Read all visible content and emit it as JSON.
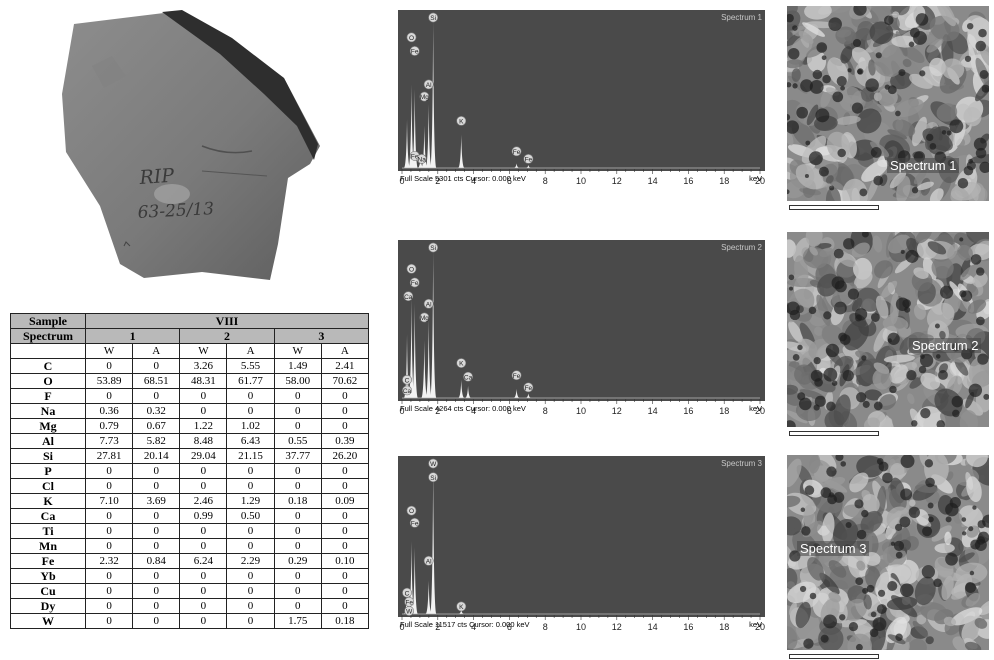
{
  "chart_data": [
    {
      "type": "table",
      "header": {
        "sample_label": "Sample",
        "sample_value": "VIII",
        "spectrum_label": "Spectrum",
        "spectra": [
          "1",
          "2",
          "3"
        ]
      },
      "sub_columns": [
        "W",
        "A",
        "W",
        "A",
        "W",
        "A"
      ],
      "rows": [
        {
          "element": "C",
          "values": [
            "0",
            "0",
            "3.26",
            "5.55",
            "1.49",
            "2.41"
          ]
        },
        {
          "element": "O",
          "values": [
            "53.89",
            "68.51",
            "48.31",
            "61.77",
            "58.00",
            "70.62"
          ]
        },
        {
          "element": "F",
          "values": [
            "0",
            "0",
            "0",
            "0",
            "0",
            "0"
          ]
        },
        {
          "element": "Na",
          "values": [
            "0.36",
            "0.32",
            "0",
            "0",
            "0",
            "0"
          ]
        },
        {
          "element": "Mg",
          "values": [
            "0.79",
            "0.67",
            "1.22",
            "1.02",
            "0",
            "0"
          ]
        },
        {
          "element": "Al",
          "values": [
            "7.73",
            "5.82",
            "8.48",
            "6.43",
            "0.55",
            "0.39"
          ]
        },
        {
          "element": "Si",
          "values": [
            "27.81",
            "20.14",
            "29.04",
            "21.15",
            "37.77",
            "26.20"
          ]
        },
        {
          "element": "P",
          "values": [
            "0",
            "0",
            "0",
            "0",
            "0",
            "0"
          ]
        },
        {
          "element": "Cl",
          "values": [
            "0",
            "0",
            "0",
            "0",
            "0",
            "0"
          ]
        },
        {
          "element": "K",
          "values": [
            "7.10",
            "3.69",
            "2.46",
            "1.29",
            "0.18",
            "0.09"
          ]
        },
        {
          "element": "Ca",
          "values": [
            "0",
            "0",
            "0.99",
            "0.50",
            "0",
            "0"
          ]
        },
        {
          "element": "Ti",
          "values": [
            "0",
            "0",
            "0",
            "0",
            "0",
            "0"
          ]
        },
        {
          "element": "Mn",
          "values": [
            "0",
            "0",
            "0",
            "0",
            "0",
            "0"
          ]
        },
        {
          "element": "Fe",
          "values": [
            "2.32",
            "0.84",
            "6.24",
            "2.29",
            "0.29",
            "0.10"
          ]
        },
        {
          "element": "Yb",
          "values": [
            "0",
            "0",
            "0",
            "0",
            "0",
            "0"
          ]
        },
        {
          "element": "Cu",
          "values": [
            "0",
            "0",
            "0",
            "0",
            "0",
            "0"
          ]
        },
        {
          "element": "Dy",
          "values": [
            "0",
            "0",
            "0",
            "0",
            "0",
            "0"
          ]
        },
        {
          "element": "W",
          "values": [
            "0",
            "0",
            "0",
            "0",
            "1.75",
            "0.18"
          ]
        }
      ]
    },
    {
      "type": "line",
      "title": "Spectrum 1",
      "xlim": [
        0,
        20
      ],
      "x_ticks": [
        "0",
        "2",
        "4",
        "6",
        "8",
        "10",
        "12",
        "14",
        "16",
        "18",
        "20"
      ],
      "x_unit": "keV",
      "footer": "Full Scale 5301 cts  Cursor: 0.000 keV",
      "peaks": [
        {
          "x": 0.28,
          "y": 0.32
        },
        {
          "x": 0.53,
          "y": 0.55
        },
        {
          "x": 0.71,
          "y": 0.52
        },
        {
          "x": 1.04,
          "y": 0.08
        },
        {
          "x": 1.25,
          "y": 0.28
        },
        {
          "x": 1.49,
          "y": 0.42
        },
        {
          "x": 1.74,
          "y": 0.97
        },
        {
          "x": 3.31,
          "y": 0.22
        },
        {
          "x": 6.4,
          "y": 0.03
        },
        {
          "x": 7.06,
          "y": 0.02
        }
      ],
      "labels": [
        {
          "text": "O",
          "x": 0.53,
          "y": 0.86
        },
        {
          "text": "Fe",
          "x": 0.71,
          "y": 0.77
        },
        {
          "text": "Fe",
          "x": 0.71,
          "y": 0.08
        },
        {
          "text": "Na",
          "x": 1.1,
          "y": 0.06
        },
        {
          "text": "Al",
          "x": 1.49,
          "y": 0.55
        },
        {
          "text": "Mg",
          "x": 1.25,
          "y": 0.47
        },
        {
          "text": "Si",
          "x": 1.74,
          "y": 0.99
        },
        {
          "text": "K",
          "x": 3.31,
          "y": 0.31
        },
        {
          "text": "Fe",
          "x": 6.4,
          "y": 0.11
        },
        {
          "text": "Fe",
          "x": 7.06,
          "y": 0.06
        }
      ]
    },
    {
      "type": "line",
      "title": "Spectrum 2",
      "xlim": [
        0,
        20
      ],
      "x_ticks": [
        "0",
        "2",
        "4",
        "6",
        "8",
        "10",
        "12",
        "14",
        "16",
        "18",
        "20"
      ],
      "x_unit": "keV",
      "footer": "Full Scale 4264 cts  Cursor: 0.000 keV",
      "peaks": [
        {
          "x": 0.28,
          "y": 0.42
        },
        {
          "x": 0.53,
          "y": 0.66
        },
        {
          "x": 0.71,
          "y": 0.62
        },
        {
          "x": 1.25,
          "y": 0.38
        },
        {
          "x": 1.49,
          "y": 0.52
        },
        {
          "x": 1.74,
          "y": 0.97
        },
        {
          "x": 3.31,
          "y": 0.12
        },
        {
          "x": 3.69,
          "y": 0.08
        },
        {
          "x": 6.4,
          "y": 0.06
        },
        {
          "x": 7.06,
          "y": 0.03
        }
      ],
      "labels": [
        {
          "text": "O",
          "x": 0.53,
          "y": 0.85
        },
        {
          "text": "Fe",
          "x": 0.71,
          "y": 0.76
        },
        {
          "text": "Ca",
          "x": 0.35,
          "y": 0.67
        },
        {
          "text": "C",
          "x": 0.28,
          "y": 0.12
        },
        {
          "text": "Ca",
          "x": 0.28,
          "y": 0.05
        },
        {
          "text": "Al",
          "x": 1.49,
          "y": 0.62
        },
        {
          "text": "Mg",
          "x": 1.25,
          "y": 0.53
        },
        {
          "text": "Si",
          "x": 1.74,
          "y": 0.99
        },
        {
          "text": "K",
          "x": 3.31,
          "y": 0.23
        },
        {
          "text": "Ca",
          "x": 3.69,
          "y": 0.14
        },
        {
          "text": "Fe",
          "x": 6.4,
          "y": 0.15
        },
        {
          "text": "Fe",
          "x": 7.06,
          "y": 0.07
        }
      ]
    },
    {
      "type": "line",
      "title": "Spectrum 3",
      "xlim": [
        0,
        20
      ],
      "x_ticks": [
        "0",
        "2",
        "4",
        "6",
        "8",
        "10",
        "12",
        "14",
        "16",
        "18",
        "20"
      ],
      "x_unit": "keV",
      "footer": "Full Scale 11517 cts  Cursor: 0.000 keV",
      "peaks": [
        {
          "x": 0.28,
          "y": 0.18
        },
        {
          "x": 0.53,
          "y": 0.48
        },
        {
          "x": 0.71,
          "y": 0.44
        },
        {
          "x": 1.49,
          "y": 0.22
        },
        {
          "x": 1.74,
          "y": 0.97
        },
        {
          "x": 3.31,
          "y": 0.03
        }
      ],
      "labels": [
        {
          "text": "W",
          "x": 1.74,
          "y": 0.99
        },
        {
          "text": "Si",
          "x": 1.74,
          "y": 0.9
        },
        {
          "text": "O",
          "x": 0.53,
          "y": 0.68
        },
        {
          "text": "Fe",
          "x": 0.71,
          "y": 0.6
        },
        {
          "text": "Al",
          "x": 1.49,
          "y": 0.35
        },
        {
          "text": "K",
          "x": 3.31,
          "y": 0.05
        },
        {
          "text": "C",
          "x": 0.28,
          "y": 0.14
        },
        {
          "text": "Fe",
          "x": 0.4,
          "y": 0.08
        },
        {
          "text": "W",
          "x": 0.4,
          "y": 0.02
        }
      ]
    }
  ],
  "sem_images": [
    {
      "label": "Spectrum 1"
    },
    {
      "label": "Spectrum 2"
    },
    {
      "label": "Spectrum 3"
    }
  ],
  "rock_photo": {
    "handwritten_text": "RIP 63-25/13"
  },
  "colors": {
    "plot_bg": "#4a4a4a",
    "peak": "#f2f2f2",
    "table_header": "#b9b9b9",
    "label_bg": "#d9d9d9"
  }
}
